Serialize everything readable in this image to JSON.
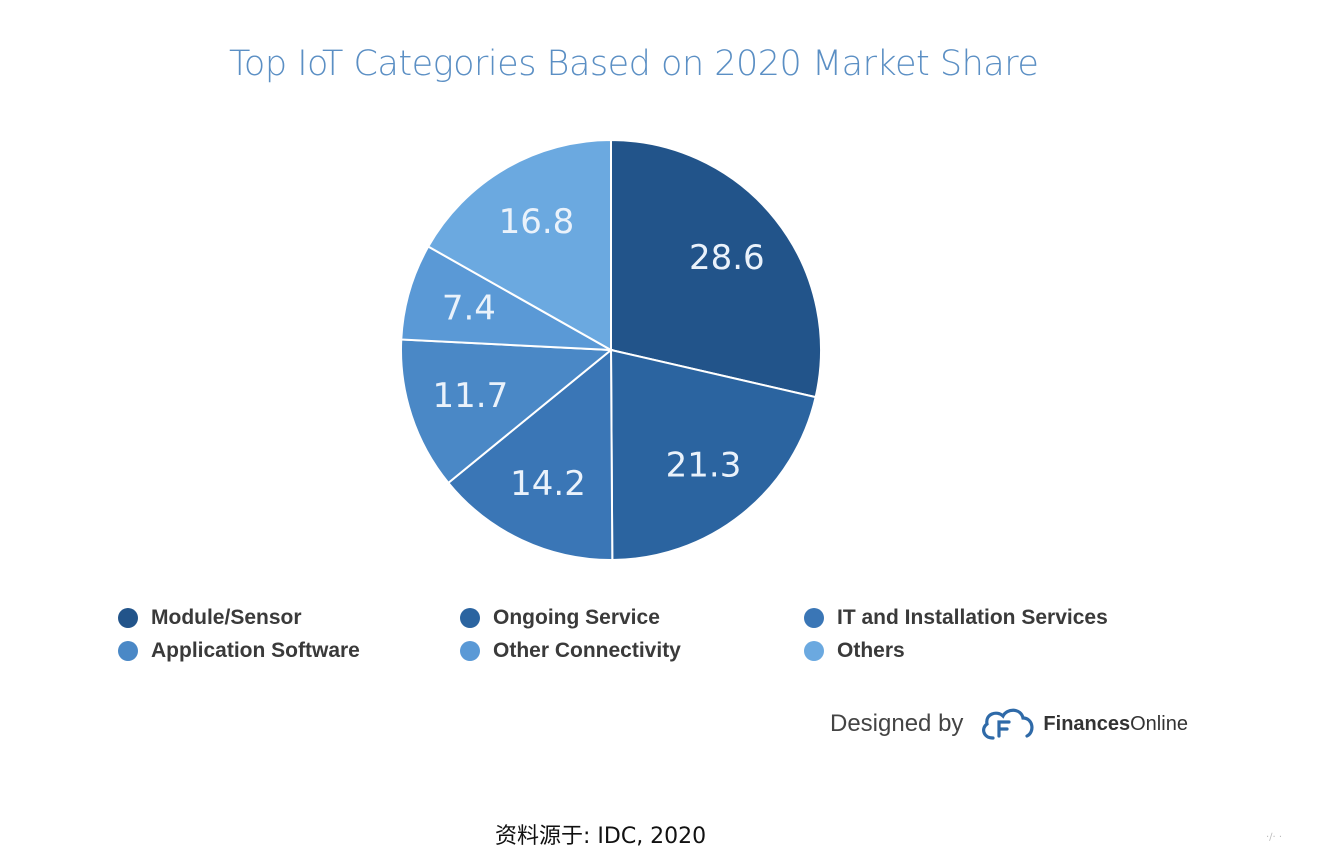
{
  "chart_data": {
    "type": "pie",
    "title": "Top IoT Categories Based on 2020 Market Share",
    "categories": [
      "Module/Sensor",
      "Ongoing Service",
      "IT and Installation Services",
      "Application Software",
      "Other Connectivity",
      "Others"
    ],
    "values": [
      28.6,
      21.3,
      14.2,
      11.7,
      7.4,
      16.8
    ],
    "value_labels": [
      "28.6",
      "21.3",
      "14.2",
      "11.7",
      "7.4",
      "16.8"
    ],
    "colors": [
      "#22548a",
      "#2b64a0",
      "#3a76b6",
      "#4a88c6",
      "#5a99d6",
      "#6ba9e0"
    ],
    "legend": {
      "placement": "bottom",
      "columns": 3
    }
  },
  "credit": {
    "prefix": "Designed by",
    "brand_bold": "Finances",
    "brand_regular": "Online",
    "logo_icon": "cloud-f-logo-icon"
  },
  "source_text": "资料源于: IDC, 2020",
  "corner_mark": "·∕· ·"
}
